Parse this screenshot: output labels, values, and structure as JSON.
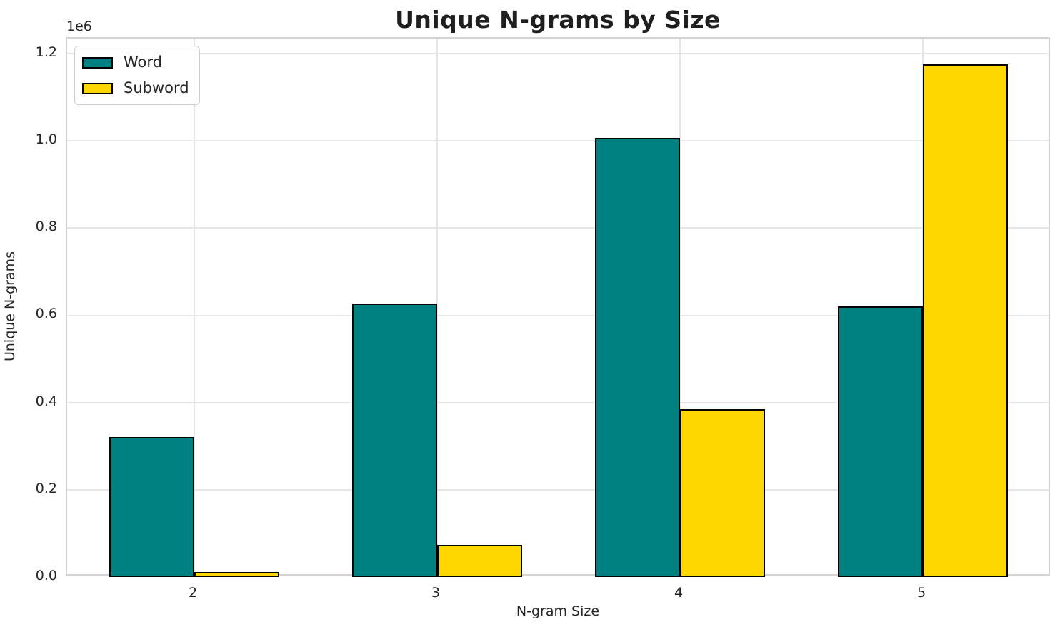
{
  "chart_data": {
    "type": "bar",
    "title": "Unique N-grams by Size",
    "xlabel": "N-gram Size",
    "ylabel": "Unique N-grams",
    "y_offset_label": "1e6",
    "categories": [
      "2",
      "3",
      "4",
      "5"
    ],
    "series": [
      {
        "name": "Word",
        "color": "#008080",
        "values": [
          320000,
          626000,
          1007000,
          620000
        ]
      },
      {
        "name": "Subword",
        "color": "#FFD700",
        "values": [
          12000,
          73000,
          385000,
          1175000
        ]
      }
    ],
    "bar_edge_color": "#000000",
    "ylim": [
      0,
      1233750
    ],
    "yticks": {
      "values": [
        0,
        200000,
        400000,
        600000,
        800000,
        1000000,
        1200000
      ],
      "labels": [
        "0.0",
        "0.2",
        "0.4",
        "0.6",
        "0.8",
        "1.0",
        "1.2"
      ]
    },
    "grid": "both",
    "legend_position": "upper-left"
  },
  "colors": {
    "background": "#ffffff",
    "spine": "#d4d4d4",
    "grid": "#e6e6e6",
    "text": "#262626",
    "title_text": "#1f1f1f"
  }
}
